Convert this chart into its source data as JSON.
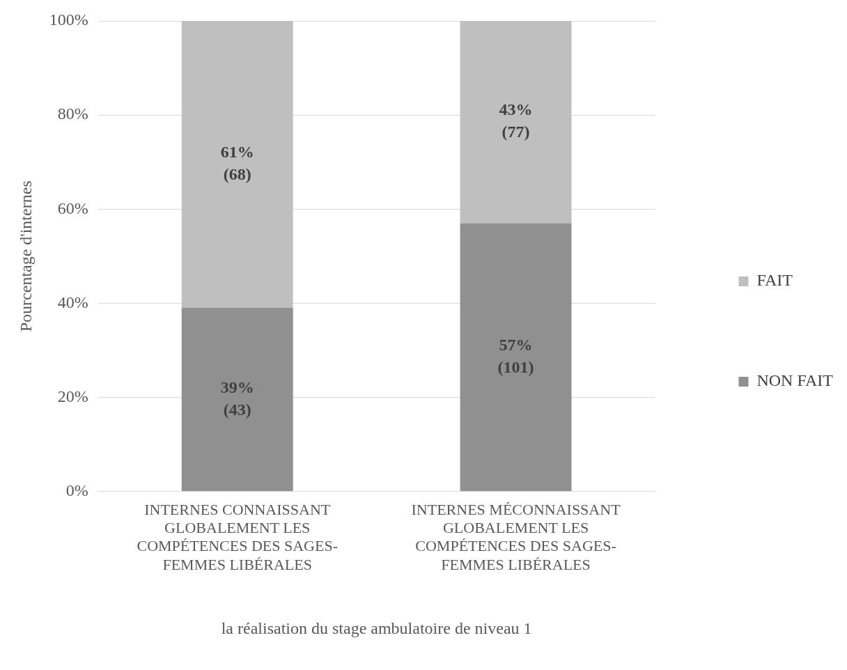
{
  "chart_data": {
    "type": "bar",
    "stacked": true,
    "categories": [
      "INTERNES CONNAISSANT GLOBALEMENT LES COMPÉTENCES DES SAGES-FEMMES LIBÉRALES",
      "INTERNES MÉCONNAISSANT GLOBALEMENT LES COMPÉTENCES DES SAGES-FEMMES LIBÉRALES"
    ],
    "series": [
      {
        "name": "NON FAIT",
        "color": "#909090",
        "values": [
          39,
          57
        ],
        "value_labels": [
          "39% (43)",
          "57% (101)"
        ]
      },
      {
        "name": "FAIT",
        "color": "#bfbfbf",
        "values": [
          61,
          43
        ],
        "value_labels": [
          "61% (68)",
          "43% (77)"
        ]
      }
    ],
    "ylabel": "Pourcentage d'internes",
    "xlabel": "la réalisation du stage ambulatoire de niveau 1",
    "ylim": [
      0,
      100
    ],
    "yticks": [
      {
        "value": 0,
        "label": "0%"
      },
      {
        "value": 20,
        "label": "20%"
      },
      {
        "value": 40,
        "label": "40%"
      },
      {
        "value": 60,
        "label": "60%"
      },
      {
        "value": 80,
        "label": "80%"
      },
      {
        "value": 100,
        "label": "100%"
      }
    ],
    "grid": "y",
    "legend": "right"
  }
}
